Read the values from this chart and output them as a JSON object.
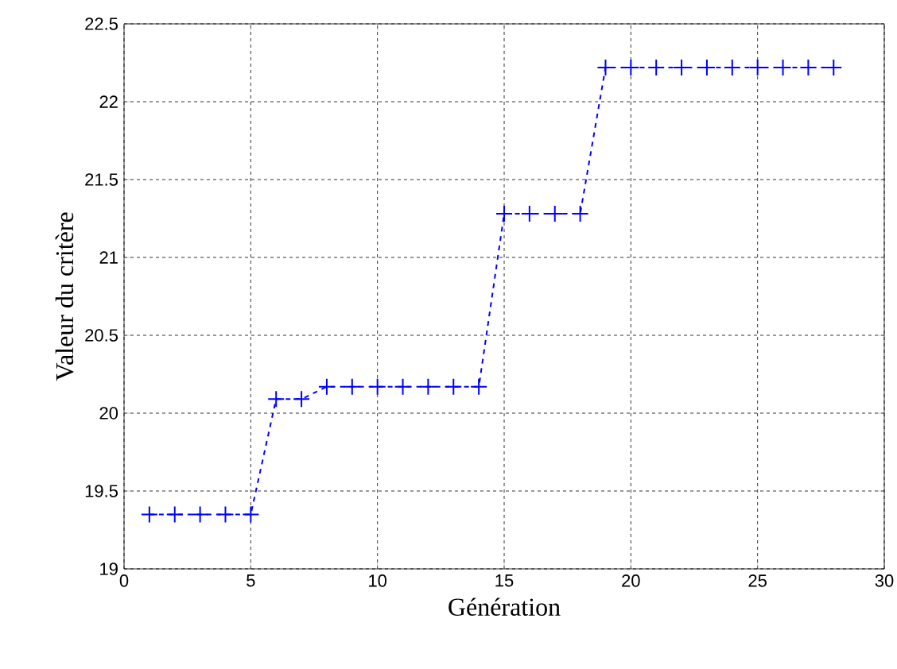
{
  "chart_data": {
    "type": "line",
    "xlabel": "Génération",
    "ylabel": "Valeur du critère",
    "x": [
      1,
      2,
      3,
      4,
      5,
      6,
      7,
      8,
      9,
      10,
      11,
      12,
      13,
      14,
      15,
      16,
      17,
      18,
      19,
      20,
      21,
      22,
      23,
      24,
      25,
      26,
      27,
      28
    ],
    "values": [
      19.35,
      19.35,
      19.35,
      19.35,
      19.35,
      20.09,
      20.09,
      20.17,
      20.17,
      20.17,
      20.17,
      20.17,
      20.17,
      20.17,
      21.28,
      21.28,
      21.28,
      21.28,
      22.22,
      22.22,
      22.22,
      22.22,
      22.22,
      22.22,
      22.22,
      22.22,
      22.22,
      22.22
    ],
    "color": "#0000ff",
    "marker": "cross",
    "line_style": "dashed",
    "grid": true,
    "xlim": [
      0,
      30
    ],
    "xticks": [
      0,
      5,
      10,
      15,
      20,
      25,
      30
    ],
    "ylim": [
      19,
      22.5
    ],
    "yticks": [
      19,
      19.5,
      20,
      20.5,
      21,
      21.5,
      22,
      22.5
    ]
  }
}
